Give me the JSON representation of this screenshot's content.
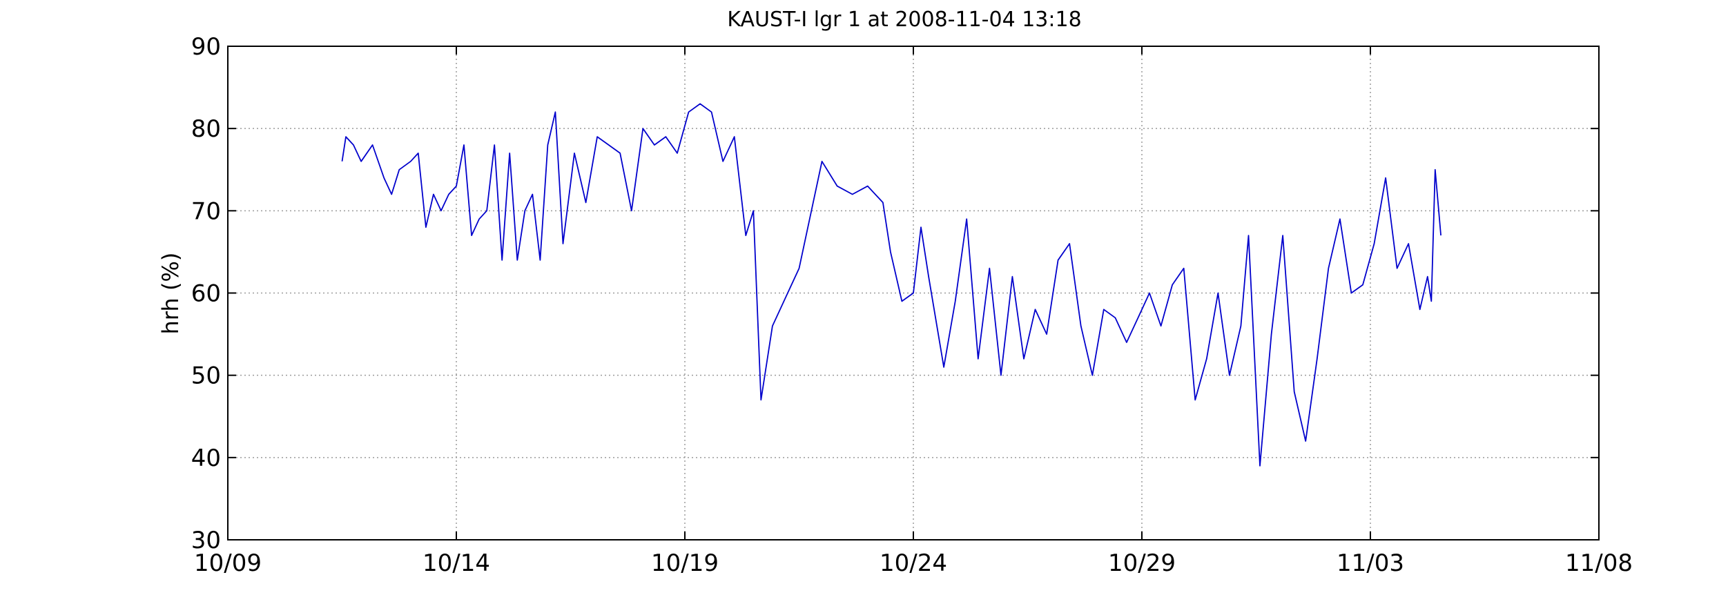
{
  "chart_data": {
    "type": "line",
    "title": "KAUST-I lgr 1 at 2008-11-04 13:18",
    "xlabel": "",
    "ylabel": "hrh (%)",
    "ylim": [
      30,
      90
    ],
    "yticks": [
      30,
      40,
      50,
      60,
      70,
      80,
      90
    ],
    "xlim": [
      "10/09",
      "11/08"
    ],
    "xticks": [
      "10/09",
      "10/14",
      "10/19",
      "10/24",
      "10/29",
      "11/03",
      "11/08"
    ],
    "grid": true,
    "line_color": "#0000cc",
    "series": [
      {
        "x": [
          "10/11 12:00",
          "10/11 14:00",
          "10/11 18:00",
          "10/11 22:00",
          "10/12 04:00",
          "10/12 10:00",
          "10/12 14:00",
          "10/12 18:00",
          "10/13 00:00",
          "10/13 04:00",
          "10/13 08:00",
          "10/13 12:00",
          "10/13 16:00",
          "10/13 20:00",
          "10/14 00:00",
          "10/14 04:00",
          "10/14 08:00",
          "10/14 12:00",
          "10/14 16:00",
          "10/14 20:00",
          "10/15 00:00",
          "10/15 04:00",
          "10/15 08:00",
          "10/15 12:00",
          "10/15 16:00",
          "10/15 20:00",
          "10/16 00:00",
          "10/16 04:00",
          "10/16 08:00",
          "10/16 14:00",
          "10/16 20:00",
          "10/17 02:00",
          "10/17 08:00",
          "10/17 14:00",
          "10/17 20:00",
          "10/18 02:00",
          "10/18 08:00",
          "10/18 14:00",
          "10/18 20:00",
          "10/19 02:00",
          "10/19 08:00",
          "10/19 14:00",
          "10/19 20:00",
          "10/20 02:00",
          "10/20 08:00",
          "10/20 12:00",
          "10/20 16:00",
          "10/20 22:00",
          "10/21 12:00",
          "10/22 00:00",
          "10/22 08:00",
          "10/22 16:00",
          "10/23 00:00",
          "10/23 08:00",
          "10/23 12:00",
          "10/23 18:00",
          "10/24 00:00",
          "10/24 04:00",
          "10/24 08:00",
          "10/24 16:00",
          "10/24 22:00",
          "10/25 04:00",
          "10/25 10:00",
          "10/25 16:00",
          "10/25 22:00",
          "10/26 04:00",
          "10/26 10:00",
          "10/26 16:00",
          "10/26 22:00",
          "10/27 04:00",
          "10/27 10:00",
          "10/27 16:00",
          "10/27 22:00",
          "10/28 04:00",
          "10/28 10:00",
          "10/28 16:00",
          "10/28 22:00",
          "10/29 04:00",
          "10/29 10:00",
          "10/29 16:00",
          "10/29 22:00",
          "10/30 04:00",
          "10/30 10:00",
          "10/30 16:00",
          "10/30 22:00",
          "10/31 04:00",
          "10/31 08:00",
          "10/31 14:00",
          "10/31 20:00",
          "11/01 02:00",
          "11/01 08:00",
          "11/01 14:00",
          "11/01 20:00",
          "11/02 02:00",
          "11/02 08:00",
          "11/02 14:00",
          "11/02 20:00",
          "11/03 02:00",
          "11/03 08:00",
          "11/03 14:00",
          "11/03 20:00",
          "11/04 02:00",
          "11/04 06:00",
          "11/04 08:00",
          "11/04 10:00",
          "11/04 13:00"
        ],
        "y": [
          76,
          79,
          78,
          76,
          78,
          74,
          72,
          75,
          76,
          77,
          68,
          72,
          70,
          72,
          73,
          78,
          67,
          69,
          70,
          78,
          64,
          77,
          64,
          70,
          72,
          64,
          78,
          82,
          66,
          77,
          71,
          79,
          78,
          77,
          70,
          80,
          78,
          79,
          77,
          82,
          83,
          82,
          76,
          79,
          67,
          70,
          47,
          56,
          63,
          76,
          73,
          72,
          73,
          71,
          65,
          59,
          60,
          68,
          62,
          51,
          59,
          69,
          52,
          63,
          50,
          62,
          52,
          58,
          55,
          64,
          66,
          56,
          50,
          58,
          57,
          54,
          57,
          60,
          56,
          61,
          63,
          47,
          52,
          60,
          50,
          56,
          67,
          39,
          55,
          67,
          48,
          42,
          52,
          63,
          69,
          60,
          61,
          66,
          74,
          63,
          66,
          58,
          62,
          59,
          75,
          67
        ]
      }
    ]
  }
}
